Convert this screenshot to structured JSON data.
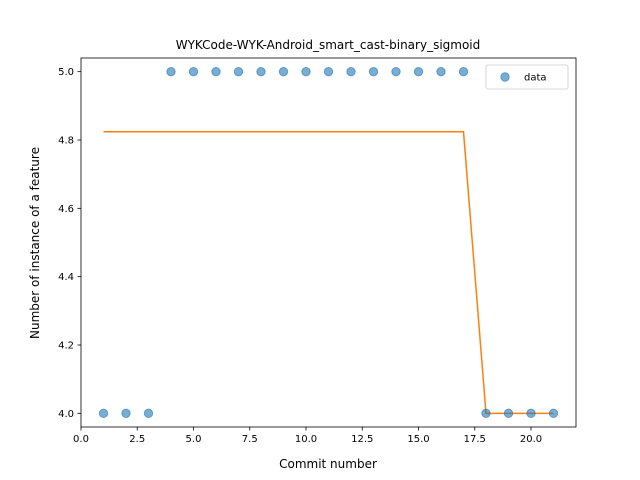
{
  "chart_data": {
    "type": "scatter",
    "title": "WYKCode-WYK-Android_smart_cast-binary_sigmoid",
    "xlabel": "Commit number",
    "ylabel": "Number of instance of a feature",
    "xlim": [
      0.0,
      22.0
    ],
    "ylim": [
      3.96,
      5.04
    ],
    "xticks": [
      0.0,
      2.5,
      5.0,
      7.5,
      10.0,
      12.5,
      15.0,
      17.5,
      20.0
    ],
    "xtick_labels": [
      "0.0",
      "2.5",
      "5.0",
      "7.5",
      "10.0",
      "12.5",
      "15.0",
      "17.5",
      "20.0"
    ],
    "yticks": [
      4.0,
      4.2,
      4.4,
      4.6,
      4.8,
      5.0
    ],
    "ytick_labels": [
      "4.0",
      "4.2",
      "4.4",
      "4.6",
      "4.8",
      "5.0"
    ],
    "grid": false,
    "legend_position": "top-right",
    "series": [
      {
        "name": "data",
        "kind": "scatter",
        "color": "#1f77b4",
        "x": [
          1,
          2,
          3,
          4,
          5,
          6,
          7,
          8,
          9,
          10,
          11,
          12,
          13,
          14,
          15,
          16,
          17,
          18,
          19,
          20,
          21
        ],
        "y": [
          4,
          4,
          4,
          5,
          5,
          5,
          5,
          5,
          5,
          5,
          5,
          5,
          5,
          5,
          5,
          5,
          5,
          4,
          4,
          4,
          4
        ]
      },
      {
        "kind": "line",
        "color": "#ff7f0e",
        "x": [
          1,
          17,
          18,
          21
        ],
        "y": [
          4.824,
          4.824,
          4.0,
          4.0
        ]
      }
    ]
  }
}
